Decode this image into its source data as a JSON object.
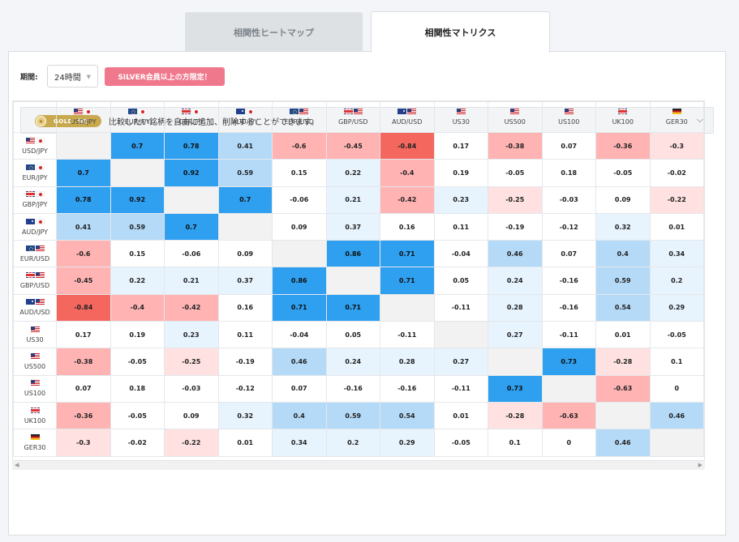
{
  "tabs": [
    {
      "label": "相関性ヒートマップ",
      "active": false
    },
    {
      "label": "相関性マトリクス",
      "active": true
    }
  ],
  "filters": {
    "period_label": "期間:",
    "period_value": "24時間",
    "silver_badge": "SILVER会員以上の方限定！"
  },
  "gold_bar": {
    "badge_text": "GOLD",
    "badge_tag": "限定",
    "message": "比較したい銘柄を自由に追加、削除することができます。"
  },
  "matrix": {
    "columns": [
      {
        "label": "USD/JPY",
        "flags": [
          "us",
          "jp"
        ]
      },
      {
        "label": "EUR/JPY",
        "flags": [
          "eu",
          "jp"
        ]
      },
      {
        "label": "GBP/JPY",
        "flags": [
          "gb",
          "jp"
        ]
      },
      {
        "label": "AUD/JPY",
        "flags": [
          "au",
          "jp"
        ]
      },
      {
        "label": "EUR/USD",
        "flags": [
          "eu",
          "us"
        ]
      },
      {
        "label": "GBP/USD",
        "flags": [
          "gb",
          "us"
        ]
      },
      {
        "label": "AUD/USD",
        "flags": [
          "au",
          "us"
        ]
      },
      {
        "label": "US30",
        "flags": [
          "us"
        ]
      },
      {
        "label": "US500",
        "flags": [
          "us"
        ]
      },
      {
        "label": "US100",
        "flags": [
          "us"
        ]
      },
      {
        "label": "UK100",
        "flags": [
          "gb"
        ]
      },
      {
        "label": "GER30",
        "flags": [
          "de"
        ]
      }
    ],
    "rows": [
      {
        "label": "USD/JPY",
        "flags": [
          "us",
          "jp"
        ],
        "values": [
          null,
          "0.7",
          "0.78",
          "0.41",
          "-0.6",
          "-0.45",
          "-0.84",
          "0.17",
          "-0.38",
          "0.07",
          "-0.36",
          "-0.3"
        ]
      },
      {
        "label": "EUR/JPY",
        "flags": [
          "eu",
          "jp"
        ],
        "values": [
          "0.7",
          null,
          "0.92",
          "0.59",
          "0.15",
          "0.22",
          "-0.4",
          "0.19",
          "-0.05",
          "0.18",
          "-0.05",
          "-0.02"
        ]
      },
      {
        "label": "GBP/JPY",
        "flags": [
          "gb",
          "jp"
        ],
        "values": [
          "0.78",
          "0.92",
          null,
          "0.7",
          "-0.06",
          "0.21",
          "-0.42",
          "0.23",
          "-0.25",
          "-0.03",
          "0.09",
          "-0.22"
        ]
      },
      {
        "label": "AUD/JPY",
        "flags": [
          "au",
          "jp"
        ],
        "values": [
          "0.41",
          "0.59",
          "0.7",
          null,
          "0.09",
          "0.37",
          "0.16",
          "0.11",
          "-0.19",
          "-0.12",
          "0.32",
          "0.01"
        ]
      },
      {
        "label": "EUR/USD",
        "flags": [
          "eu",
          "us"
        ],
        "values": [
          "-0.6",
          "0.15",
          "-0.06",
          "0.09",
          null,
          "0.86",
          "0.71",
          "-0.04",
          "0.46",
          "0.07",
          "0.4",
          "0.34"
        ]
      },
      {
        "label": "GBP/USD",
        "flags": [
          "gb",
          "us"
        ],
        "values": [
          "-0.45",
          "0.22",
          "0.21",
          "0.37",
          "0.86",
          null,
          "0.71",
          "0.05",
          "0.24",
          "-0.16",
          "0.59",
          "0.2"
        ]
      },
      {
        "label": "AUD/USD",
        "flags": [
          "au",
          "us"
        ],
        "values": [
          "-0.84",
          "-0.4",
          "-0.42",
          "0.16",
          "0.71",
          "0.71",
          null,
          "-0.11",
          "0.28",
          "-0.16",
          "0.54",
          "0.29"
        ]
      },
      {
        "label": "US30",
        "flags": [
          "us"
        ],
        "values": [
          "0.17",
          "0.19",
          "0.23",
          "0.11",
          "-0.04",
          "0.05",
          "-0.11",
          null,
          "0.27",
          "-0.11",
          "0.01",
          "-0.05"
        ]
      },
      {
        "label": "US500",
        "flags": [
          "us"
        ],
        "values": [
          "-0.38",
          "-0.05",
          "-0.25",
          "-0.19",
          "0.46",
          "0.24",
          "0.28",
          "0.27",
          null,
          "0.73",
          "-0.28",
          "0.1"
        ]
      },
      {
        "label": "US100",
        "flags": [
          "us"
        ],
        "values": [
          "0.07",
          "0.18",
          "-0.03",
          "-0.12",
          "0.07",
          "-0.16",
          "-0.16",
          "-0.11",
          "0.73",
          null,
          "-0.63",
          "0"
        ]
      },
      {
        "label": "UK100",
        "flags": [
          "gb"
        ],
        "values": [
          "-0.36",
          "-0.05",
          "0.09",
          "0.32",
          "0.4",
          "0.59",
          "0.54",
          "0.01",
          "-0.28",
          "-0.63",
          null,
          "0.46"
        ]
      },
      {
        "label": "GER30",
        "flags": [
          "de"
        ],
        "values": [
          "-0.3",
          "-0.02",
          "-0.22",
          "0.01",
          "0.34",
          "0.2",
          "0.29",
          "-0.05",
          "0.1",
          "0",
          "0.46",
          null
        ]
      }
    ]
  }
}
